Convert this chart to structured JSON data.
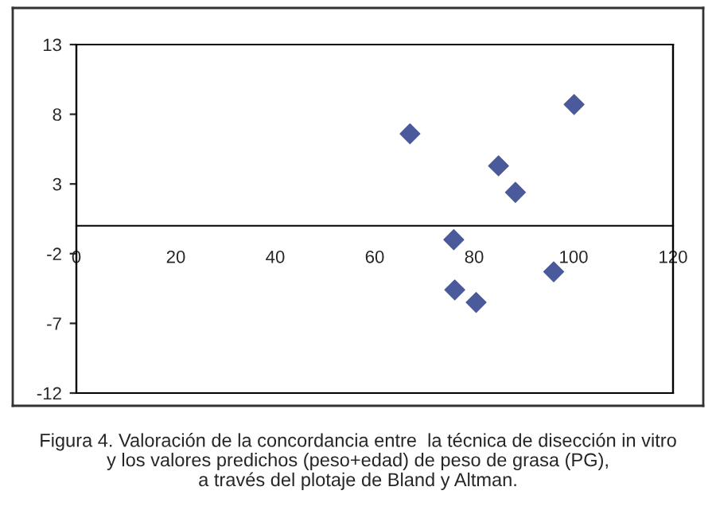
{
  "chart_data": {
    "type": "scatter",
    "x": [
      67.1,
      100.1,
      84.9,
      88.3,
      75.9,
      96.0,
      76.1,
      80.4
    ],
    "values": [
      6.6,
      8.7,
      4.3,
      2.4,
      -1.0,
      -3.3,
      -4.6,
      -5.5
    ],
    "color": "#4a5a9a",
    "marker": "diamond",
    "xlim": [
      0,
      120
    ],
    "xticks": [
      0,
      20,
      40,
      60,
      80,
      100,
      120
    ],
    "ylim": [
      -12,
      13
    ],
    "yticks": [
      -12,
      -7,
      -2,
      3,
      8,
      13
    ],
    "grid": false,
    "annotations": [
      "Figura 4. Valoración de la concordancia entre  la técnica de disección in vitro\ny los valores predichos (peso+edad) de peso de grasa (PG),\na través del plotaje de Bland y Altman."
    ]
  }
}
